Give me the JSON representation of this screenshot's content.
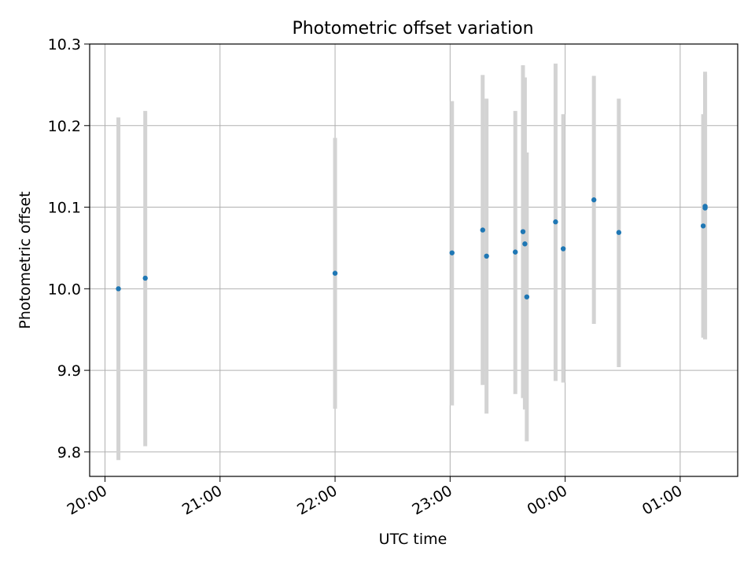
{
  "chart_data": {
    "type": "scatter",
    "title": "Photometric offset variation",
    "xlabel": "UTC time",
    "ylabel": "Photometric offset",
    "x_unit": "hours",
    "xlim": [
      "19:52",
      "01:30"
    ],
    "ylim": [
      9.77,
      10.3
    ],
    "grid": true,
    "x_ticks": [
      "20:00",
      "21:00",
      "22:00",
      "23:00",
      "00:00",
      "01:00"
    ],
    "y_ticks": [
      "9.8",
      "9.9",
      "10.0",
      "10.1",
      "10.2",
      "10.3"
    ],
    "colors": {
      "point": "#1f77b4",
      "errorbar": "#d3d3d3",
      "grid": "#b0b0b0"
    },
    "series": [
      {
        "points": [
          {
            "x": "20:07",
            "y": 10.0,
            "err_low": 9.79,
            "err_high": 10.21
          },
          {
            "x": "20:21",
            "y": 10.013,
            "err_low": 9.807,
            "err_high": 10.218
          },
          {
            "x": "22:00",
            "y": 10.019,
            "err_low": 9.853,
            "err_high": 10.185
          },
          {
            "x": "23:01",
            "y": 10.044,
            "err_low": 9.857,
            "err_high": 10.23
          },
          {
            "x": "23:17",
            "y": 10.072,
            "err_low": 9.882,
            "err_high": 10.262
          },
          {
            "x": "23:19",
            "y": 10.04,
            "err_low": 9.847,
            "err_high": 10.233
          },
          {
            "x": "23:34",
            "y": 10.045,
            "err_low": 9.871,
            "err_high": 10.218
          },
          {
            "x": "23:38",
            "y": 10.07,
            "err_low": 9.866,
            "err_high": 10.274
          },
          {
            "x": "23:39",
            "y": 10.055,
            "err_low": 9.852,
            "err_high": 10.259
          },
          {
            "x": "23:40",
            "y": 9.99,
            "err_low": 9.813,
            "err_high": 10.167
          },
          {
            "x": "23:55",
            "y": 10.082,
            "err_low": 9.887,
            "err_high": 10.276
          },
          {
            "x": "23:59",
            "y": 10.049,
            "err_low": 9.885,
            "err_high": 10.214
          },
          {
            "x": "00:15",
            "y": 10.109,
            "err_low": 9.957,
            "err_high": 10.261
          },
          {
            "x": "00:28",
            "y": 10.069,
            "err_low": 9.904,
            "err_high": 10.233
          },
          {
            "x": "01:12",
            "y": 10.077,
            "err_low": 9.94,
            "err_high": 10.214
          },
          {
            "x": "01:13",
            "y": 10.101,
            "err_low": 9.938,
            "err_high": 10.266
          },
          {
            "x": "01:13",
            "y": 10.099,
            "err_low": 9.938,
            "err_high": 10.262
          }
        ]
      }
    ]
  }
}
